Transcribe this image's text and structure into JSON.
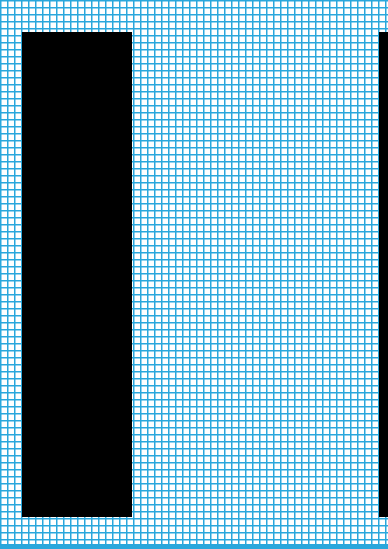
{
  "colors": {
    "grid_line": "#2aa7dc",
    "background": "#ffffff",
    "block": "#000000"
  },
  "blocks": [
    {
      "name": "left-black-block"
    },
    {
      "name": "right-black-block"
    }
  ]
}
